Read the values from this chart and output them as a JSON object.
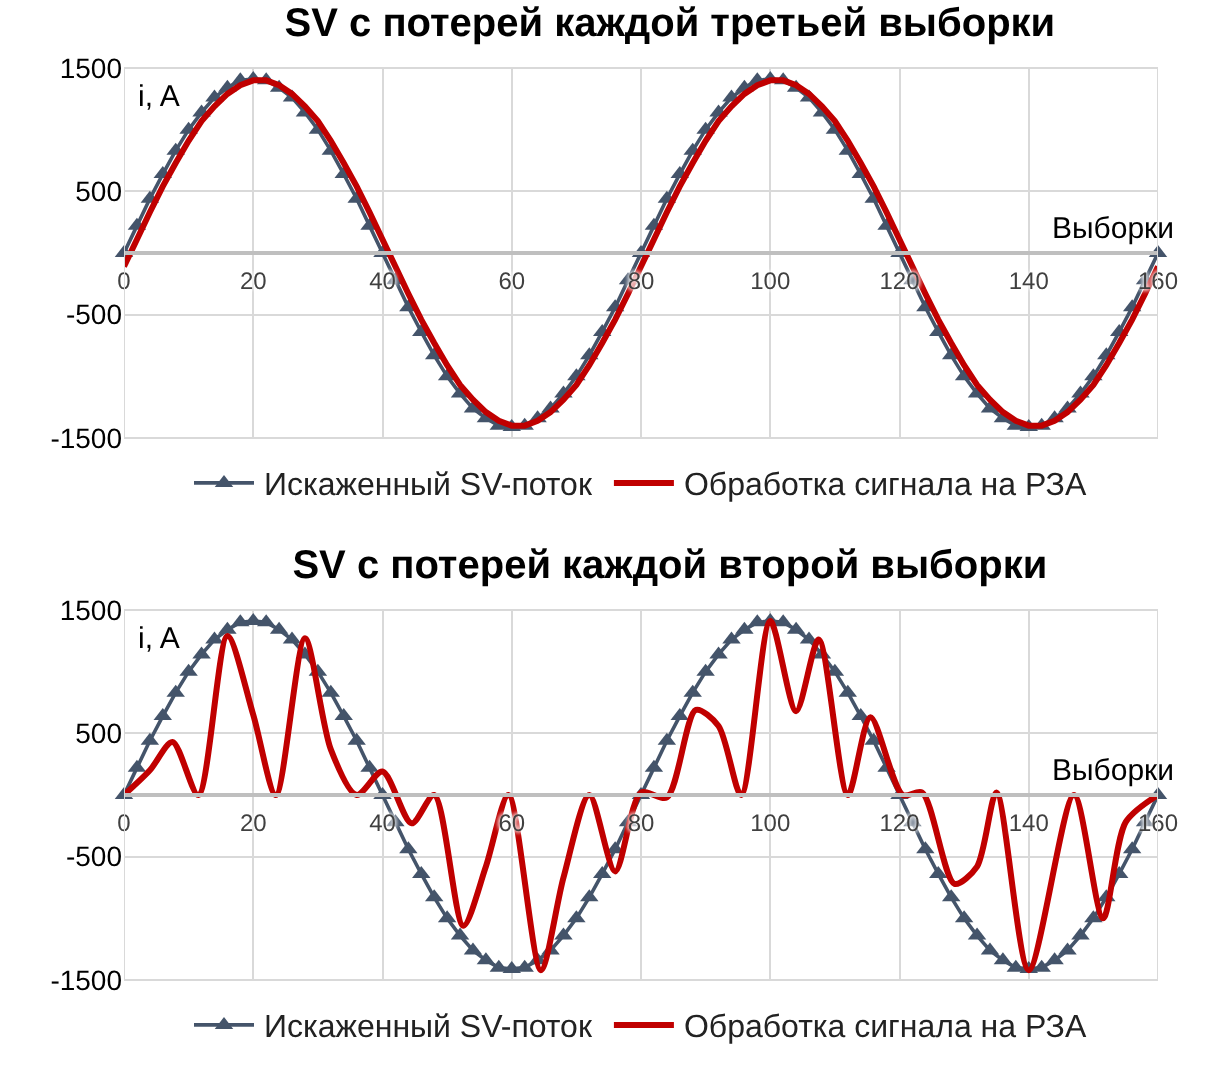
{
  "chart_data": [
    {
      "type": "line",
      "title": "SV с потерей каждой третьей выборки",
      "xlabel": "Выборки",
      "ylabel": "i, A",
      "xlim": [
        0,
        160
      ],
      "xticks": [
        0,
        20,
        40,
        60,
        80,
        100,
        120,
        140,
        160
      ],
      "ylim": [
        -1500,
        1500
      ],
      "yticks": [
        -1500,
        -500,
        500,
        1500
      ],
      "grid": true,
      "legend": "bottom",
      "series": [
        {
          "name": "Искаженный SV-поток",
          "color": "#44546a",
          "marker": "triangle",
          "x": [
            0,
            2,
            4,
            6,
            8,
            10,
            12,
            14,
            16,
            18,
            20,
            22,
            24,
            26,
            28,
            30,
            32,
            34,
            36,
            38,
            40,
            42,
            44,
            46,
            48,
            50,
            52,
            54,
            56,
            58,
            60,
            62,
            64,
            66,
            68,
            70,
            72,
            74,
            76,
            78,
            80,
            82,
            84,
            86,
            88,
            90,
            92,
            94,
            96,
            98,
            100,
            102,
            104,
            106,
            108,
            110,
            112,
            114,
            116,
            118,
            120,
            122,
            124,
            126,
            128,
            130,
            132,
            134,
            136,
            138,
            140,
            142,
            144,
            146,
            148,
            150,
            152,
            154,
            156,
            158,
            160
          ],
          "values": [
            0,
            220,
            440,
            640,
            830,
            1000,
            1140,
            1260,
            1340,
            1400,
            1410,
            1400,
            1340,
            1260,
            1140,
            1000,
            830,
            640,
            440,
            220,
            0,
            -220,
            -440,
            -640,
            -830,
            -1000,
            -1140,
            -1260,
            -1340,
            -1400,
            -1410,
            -1400,
            -1340,
            -1260,
            -1140,
            -1000,
            -830,
            -640,
            -440,
            -220,
            0,
            220,
            440,
            640,
            830,
            1000,
            1140,
            1260,
            1340,
            1400,
            1410,
            1400,
            1340,
            1260,
            1140,
            1000,
            830,
            640,
            440,
            220,
            0,
            -220,
            -440,
            -640,
            -830,
            -1000,
            -1140,
            -1260,
            -1340,
            -1400,
            -1410,
            -1400,
            -1340,
            -1260,
            -1140,
            -1000,
            -830,
            -640,
            -440,
            -220,
            0
          ]
        },
        {
          "name": "Обработка сигнала на РЗА",
          "color": "#c00000",
          "marker": "none",
          "x": [
            0,
            2,
            4,
            6,
            8,
            10,
            12,
            14,
            16,
            18,
            20,
            22,
            24,
            26,
            28,
            30,
            32,
            34,
            36,
            38,
            40,
            42,
            44,
            46,
            48,
            50,
            52,
            54,
            56,
            58,
            60,
            62,
            64,
            66,
            68,
            70,
            72,
            74,
            76,
            78,
            80,
            82,
            84,
            86,
            88,
            90,
            92,
            94,
            96,
            98,
            100,
            102,
            104,
            106,
            108,
            110,
            112,
            114,
            116,
            118,
            120,
            122,
            124,
            126,
            128,
            130,
            132,
            134,
            136,
            138,
            140,
            142,
            144,
            146,
            148,
            150,
            152,
            154,
            156,
            158,
            160
          ],
          "values": [
            -110,
            110,
            330,
            540,
            730,
            910,
            1070,
            1190,
            1290,
            1360,
            1400,
            1400,
            1360,
            1290,
            1190,
            1070,
            910,
            730,
            540,
            330,
            110,
            -110,
            -330,
            -540,
            -730,
            -910,
            -1070,
            -1190,
            -1290,
            -1360,
            -1400,
            -1400,
            -1360,
            -1290,
            -1190,
            -1070,
            -910,
            -730,
            -540,
            -330,
            -110,
            110,
            330,
            540,
            730,
            910,
            1070,
            1190,
            1290,
            1360,
            1400,
            1400,
            1360,
            1290,
            1190,
            1070,
            910,
            730,
            540,
            330,
            110,
            -110,
            -330,
            -540,
            -730,
            -910,
            -1070,
            -1190,
            -1290,
            -1360,
            -1400,
            -1400,
            -1360,
            -1290,
            -1190,
            -1070,
            -910,
            -730,
            -540,
            -330,
            -110
          ]
        }
      ]
    },
    {
      "type": "line",
      "title": "SV с потерей каждой второй выборки",
      "xlabel": "Выборки",
      "ylabel": "i, A",
      "xlim": [
        0,
        160
      ],
      "xticks": [
        0,
        20,
        40,
        60,
        80,
        100,
        120,
        140,
        160
      ],
      "ylim": [
        -1500,
        1500
      ],
      "yticks": [
        -1500,
        -500,
        500,
        1500
      ],
      "grid": true,
      "legend": "bottom",
      "series": [
        {
          "name": "Искаженный SV-поток",
          "color": "#44546a",
          "marker": "triangle",
          "x": [
            0,
            2,
            4,
            6,
            8,
            10,
            12,
            14,
            16,
            18,
            20,
            22,
            24,
            26,
            28,
            30,
            32,
            34,
            36,
            38,
            40,
            42,
            44,
            46,
            48,
            50,
            52,
            54,
            56,
            58,
            60,
            62,
            64,
            66,
            68,
            70,
            72,
            74,
            76,
            78,
            80,
            82,
            84,
            86,
            88,
            90,
            92,
            94,
            96,
            98,
            100,
            102,
            104,
            106,
            108,
            110,
            112,
            114,
            116,
            118,
            120,
            122,
            124,
            126,
            128,
            130,
            132,
            134,
            136,
            138,
            140,
            142,
            144,
            146,
            148,
            150,
            152,
            154,
            156,
            158,
            160
          ],
          "values": [
            0,
            220,
            440,
            640,
            830,
            1000,
            1140,
            1260,
            1340,
            1400,
            1410,
            1400,
            1340,
            1260,
            1140,
            1000,
            830,
            640,
            440,
            220,
            0,
            -220,
            -440,
            -640,
            -830,
            -1000,
            -1140,
            -1260,
            -1340,
            -1400,
            -1410,
            -1400,
            -1340,
            -1260,
            -1140,
            -1000,
            -830,
            -640,
            -440,
            -220,
            0,
            220,
            440,
            640,
            830,
            1000,
            1140,
            1260,
            1340,
            1400,
            1410,
            1400,
            1340,
            1260,
            1140,
            1000,
            830,
            640,
            440,
            220,
            0,
            -220,
            -440,
            -640,
            -830,
            -1000,
            -1140,
            -1260,
            -1340,
            -1400,
            -1410,
            -1400,
            -1340,
            -1260,
            -1140,
            -1000,
            -830,
            -640,
            -440,
            -220,
            0
          ]
        },
        {
          "name": "Обработка сигнала на РЗА",
          "color": "#c00000",
          "marker": "none",
          "x": [
            0,
            4,
            7.5,
            11.5,
            16,
            20,
            23.5,
            28,
            32,
            36,
            40,
            44.5,
            48,
            52.5,
            56,
            59.5,
            64.5,
            68,
            72,
            76,
            80,
            84,
            88.5,
            92,
            95.5,
            100,
            104,
            107.5,
            112,
            115.5,
            120.5,
            123.5,
            128.5,
            132,
            135,
            140,
            147,
            151.5,
            155,
            160
          ],
          "values": [
            0,
            200,
            430,
            0,
            1290,
            650,
            0,
            1270,
            370,
            0,
            190,
            -230,
            0,
            -1060,
            -580,
            0,
            -1420,
            -670,
            0,
            -620,
            20,
            -20,
            690,
            560,
            0,
            1410,
            680,
            1260,
            0,
            630,
            0,
            20,
            -720,
            -580,
            20,
            -1420,
            0,
            -1000,
            -220,
            0
          ]
        }
      ]
    }
  ]
}
